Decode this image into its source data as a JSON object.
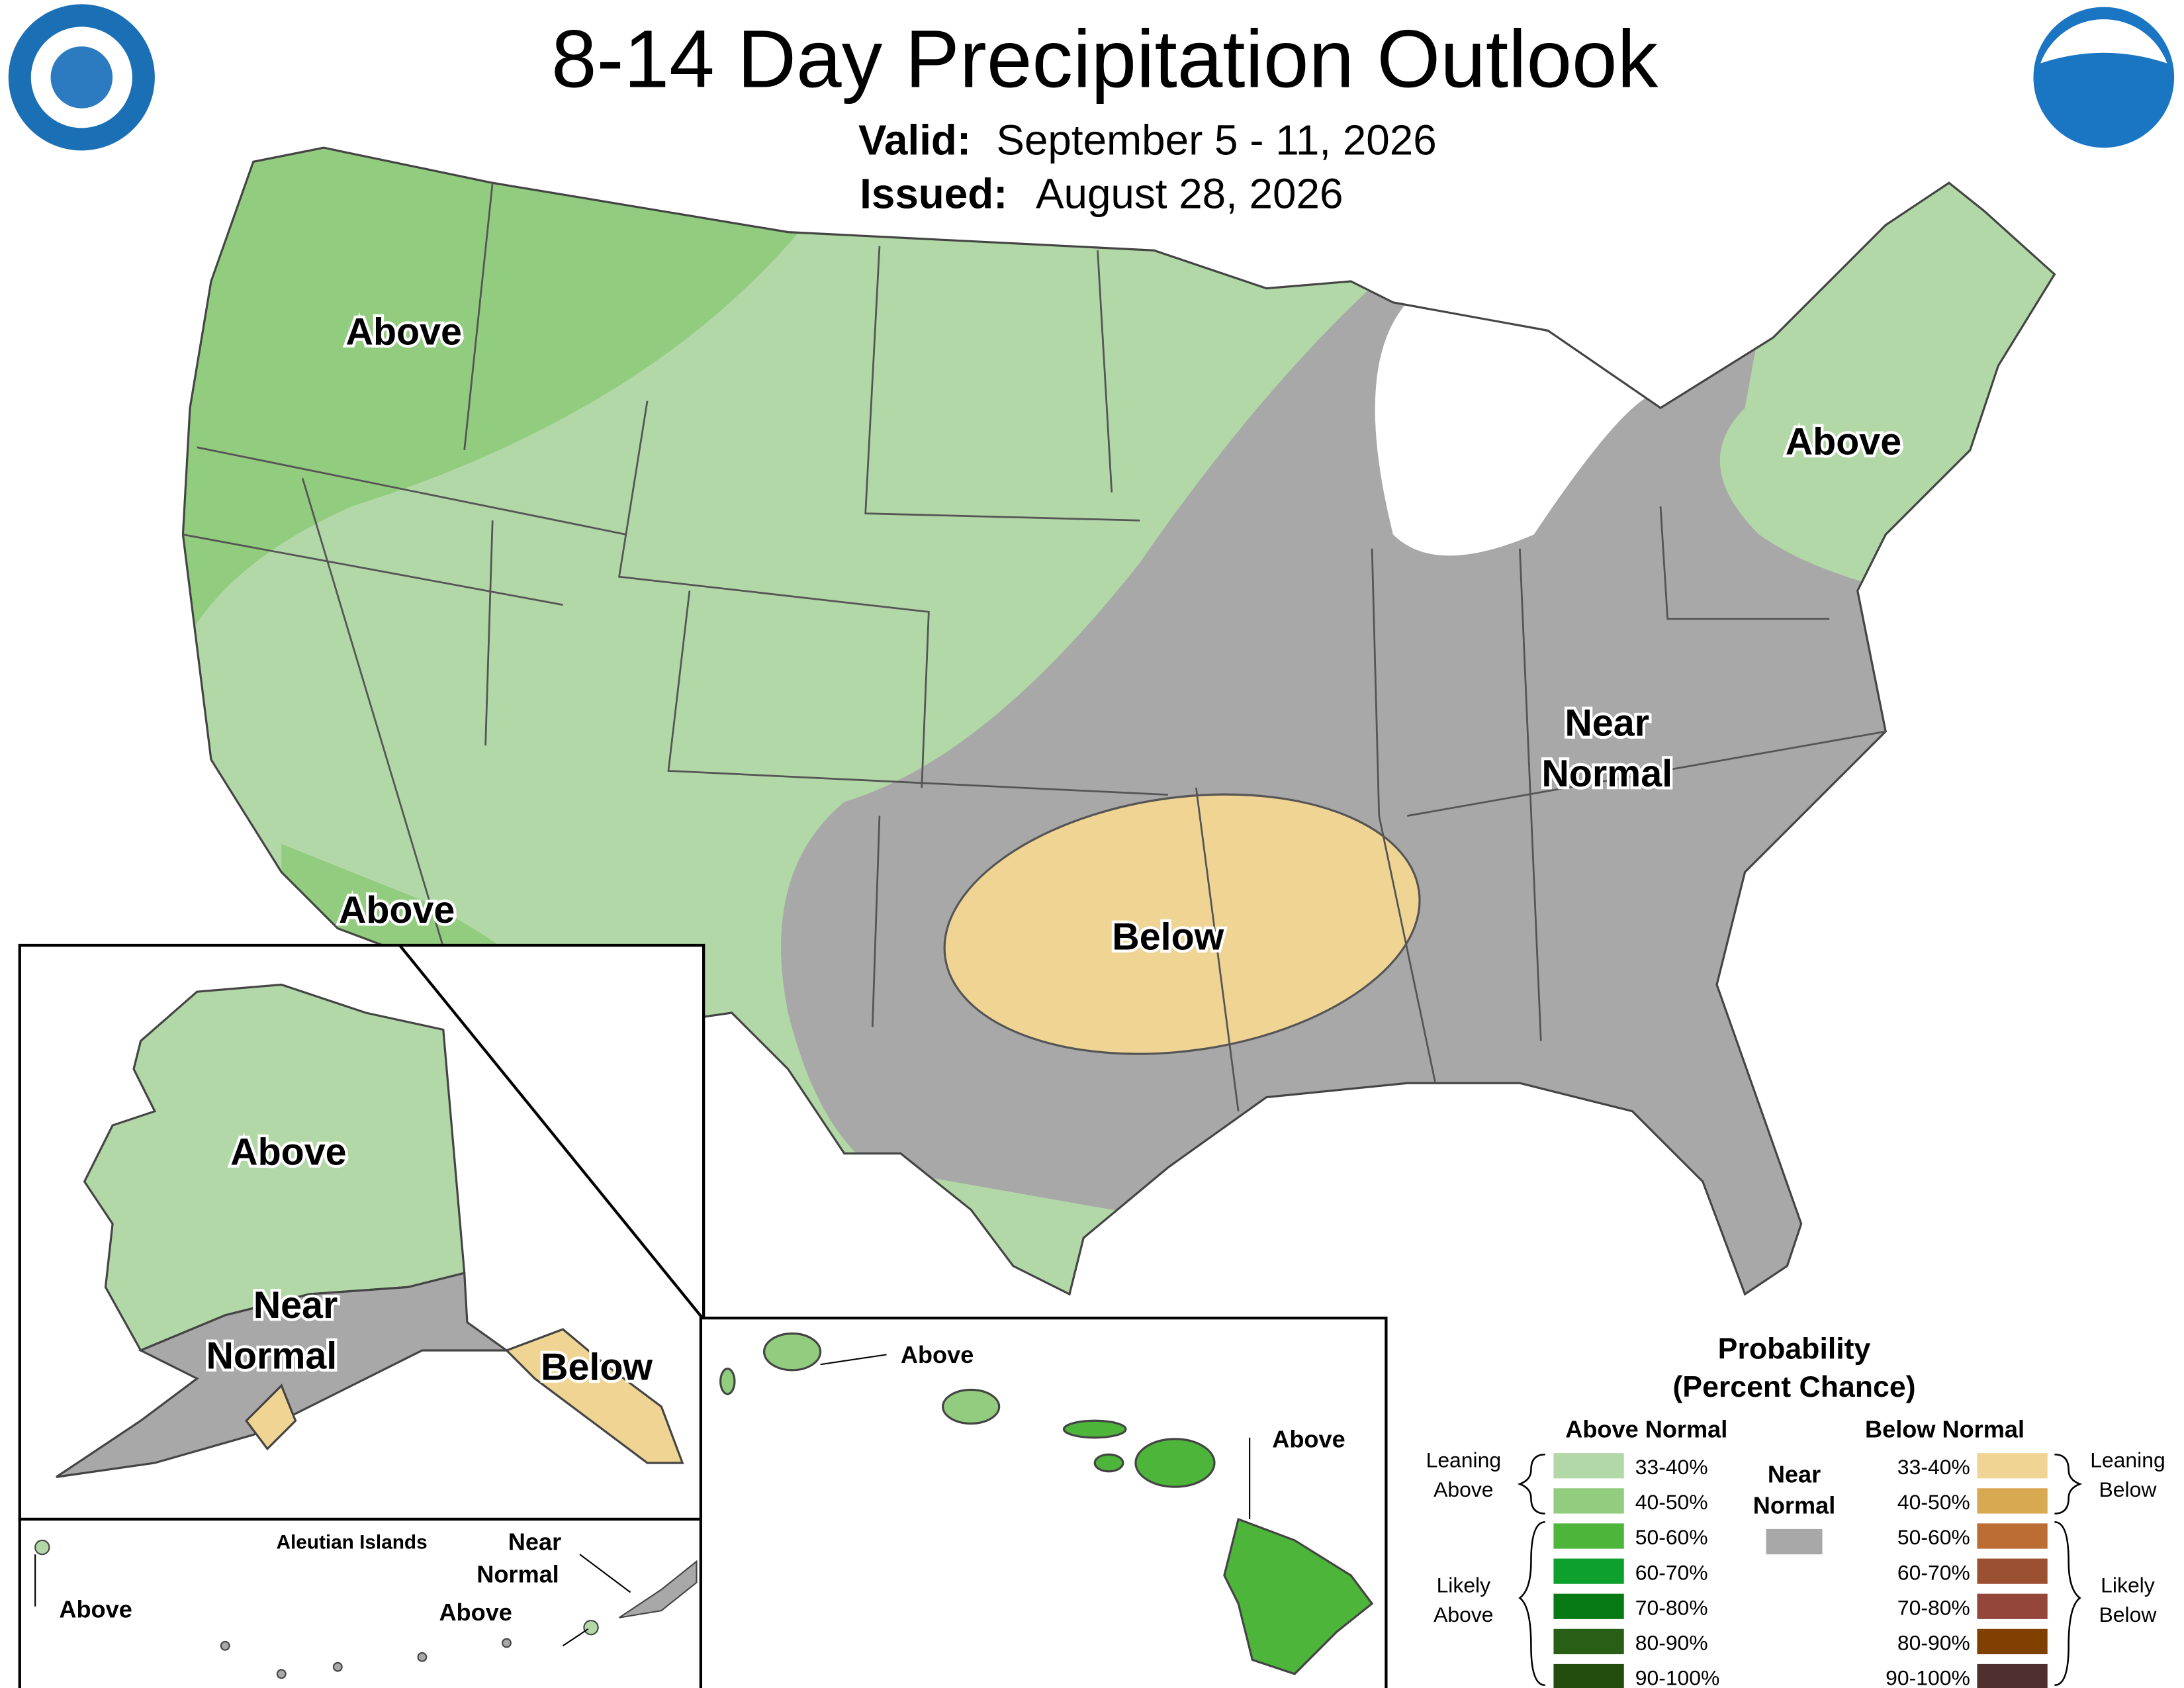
{
  "header": {
    "title": "8-14 Day Precipitation Outlook",
    "valid_label": "Valid:",
    "valid": "September 5 - 11, 2026",
    "issued_label": "Issued:",
    "issued": "August 28, 2026"
  },
  "conus": {
    "labels": [
      "Above",
      "Above",
      "Above",
      "Near",
      "Normal",
      "Below"
    ]
  },
  "alaska": {
    "labels": [
      "Above",
      "Near",
      "Normal",
      "Below"
    ]
  },
  "aleutians": {
    "title": "Aleutian Islands",
    "labels": [
      "Near",
      "Normal",
      "Above",
      "Above"
    ]
  },
  "hawaii": {
    "labels": [
      "Above",
      "Above"
    ]
  },
  "legend": {
    "title": [
      "Probability",
      "(Percent Chance)"
    ],
    "above_heading": "Above Normal",
    "below_heading": "Below Normal",
    "near_heading": [
      "Near",
      "Normal"
    ],
    "near_color": "#a8a8a8",
    "above_bins": [
      {
        "label": "33-40%",
        "color": "#b3d8a8"
      },
      {
        "label": "40-50%",
        "color": "#92cc7e"
      },
      {
        "label": "50-60%",
        "color": "#4db53a"
      },
      {
        "label": "60-70%",
        "color": "#0ea02c"
      },
      {
        "label": "70-80%",
        "color": "#077a15"
      },
      {
        "label": "80-90%",
        "color": "#285e15"
      },
      {
        "label": "90-100%",
        "color": "#234d0e"
      }
    ],
    "below_bins": [
      {
        "label": "33-40%",
        "color": "#f0d494"
      },
      {
        "label": "40-50%",
        "color": "#d8a950"
      },
      {
        "label": "50-60%",
        "color": "#bb6d33"
      },
      {
        "label": "60-70%",
        "color": "#9b5031"
      },
      {
        "label": "70-80%",
        "color": "#934639"
      },
      {
        "label": "80-90%",
        "color": "#804000"
      },
      {
        "label": "90-100%",
        "color": "#4f2f2f"
      }
    ],
    "groups": {
      "leaning_above": [
        "Leaning",
        "Above"
      ],
      "likely_above": [
        "Likely",
        "Above"
      ],
      "leaning_below": [
        "Leaning",
        "Below"
      ],
      "likely_below": [
        "Likely",
        "Below"
      ]
    }
  }
}
